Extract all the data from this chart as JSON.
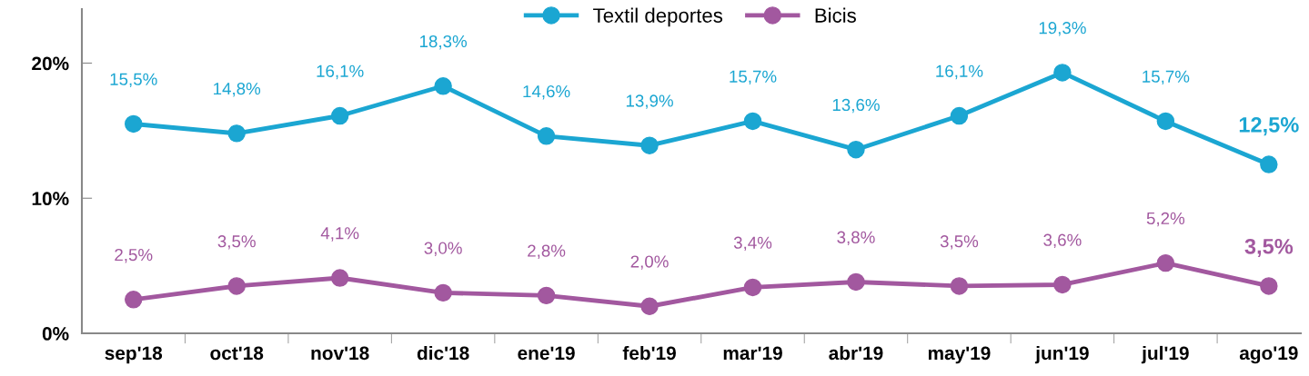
{
  "chart_data": {
    "type": "line",
    "categories": [
      "sep'18",
      "oct'18",
      "nov'18",
      "dic'18",
      "ene'19",
      "feb'19",
      "mar'19",
      "abr'19",
      "may'19",
      "jun'19",
      "jul'19",
      "ago'19"
    ],
    "series": [
      {
        "name": "Textil deportes",
        "color": "#1ba6d2",
        "values": [
          15.5,
          14.8,
          16.1,
          18.3,
          14.6,
          13.9,
          15.7,
          13.6,
          16.1,
          19.3,
          15.7,
          12.5
        ],
        "value_labels": [
          "15,5%",
          "14,8%",
          "16,1%",
          "18,3%",
          "14,6%",
          "13,9%",
          "15,7%",
          "13,6%",
          "16,1%",
          "19,3%",
          "15,7%",
          "12,5%"
        ]
      },
      {
        "name": "Bicis",
        "color": "#a2589f",
        "values": [
          2.5,
          3.5,
          4.1,
          3.0,
          2.8,
          2.0,
          3.4,
          3.8,
          3.5,
          3.6,
          5.2,
          3.5
        ],
        "value_labels": [
          "2,5%",
          "3,5%",
          "4,1%",
          "3,0%",
          "2,8%",
          "2,0%",
          "3,4%",
          "3,8%",
          "3,5%",
          "3,6%",
          "5,2%",
          "3,5%"
        ]
      }
    ],
    "ylim": [
      0,
      24
    ],
    "yticks": [
      {
        "value": 0,
        "label": "0%"
      },
      {
        "value": 10,
        "label": "10%"
      },
      {
        "value": 20,
        "label": "20%"
      }
    ],
    "grid": false,
    "legend": "top",
    "marker": "circle",
    "line_style": "solid"
  }
}
